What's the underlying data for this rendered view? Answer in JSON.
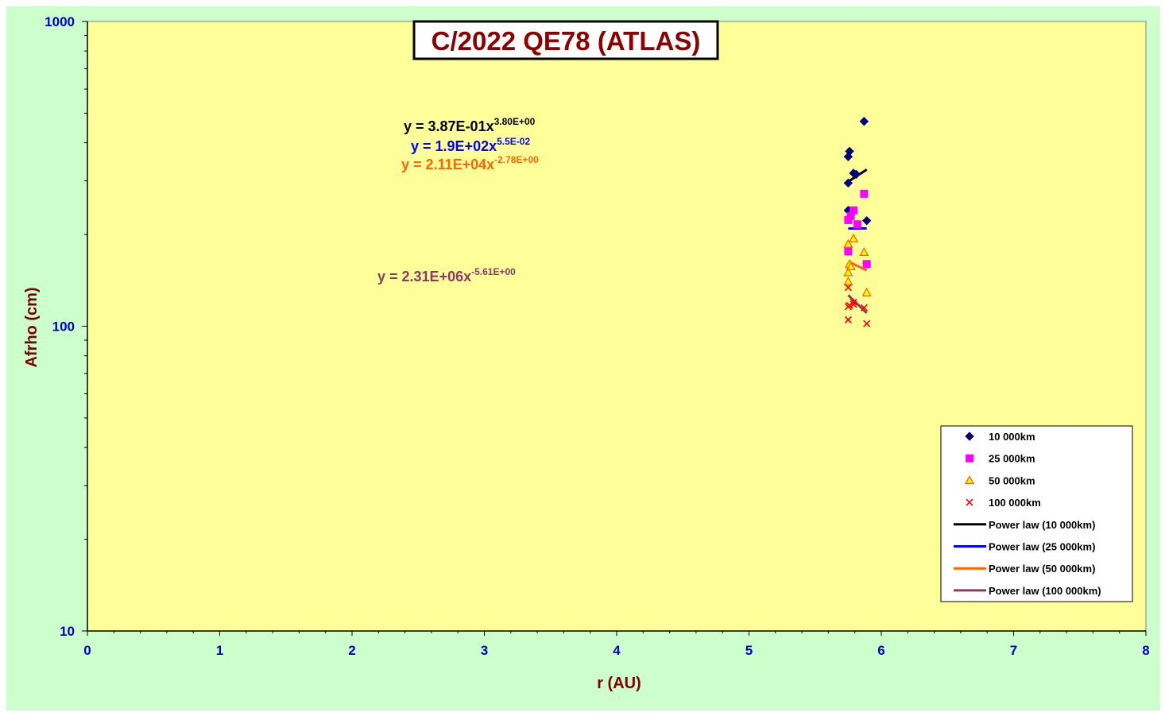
{
  "chart_data": {
    "type": "scatter",
    "title": "C/2022 QE78 (ATLAS)",
    "xlabel": "r (AU)",
    "ylabel": "Afrho (cm)",
    "xlim": [
      0,
      8
    ],
    "ylim": [
      10,
      1000
    ],
    "yscale": "log",
    "x_ticks": [
      "0",
      "1",
      "2",
      "3",
      "4",
      "5",
      "6",
      "7",
      "8"
    ],
    "y_ticks": [
      "10",
      "100",
      "1000"
    ],
    "grid": false,
    "legend_position": "bottom-right",
    "colors": {
      "page_background": "#ccffcc",
      "plot_background": "#ffff99",
      "axis_text": "#0000cc",
      "label_text": "#7f0000",
      "title_text": "#8b0000"
    },
    "series": [
      {
        "name": "10 000km",
        "marker": "diamond",
        "color": "#000080",
        "points": [
          [
            5.87,
            470
          ],
          [
            5.76,
            375
          ],
          [
            5.75,
            360
          ],
          [
            5.79,
            318
          ],
          [
            5.81,
            315
          ],
          [
            5.75,
            295
          ],
          [
            5.89,
            222
          ],
          [
            5.75,
            240
          ]
        ]
      },
      {
        "name": "25 000km",
        "marker": "square",
        "color": "#ff00ff",
        "points": [
          [
            5.87,
            272
          ],
          [
            5.79,
            240
          ],
          [
            5.77,
            230
          ],
          [
            5.75,
            223
          ],
          [
            5.82,
            216
          ],
          [
            5.75,
            176
          ],
          [
            5.89,
            160
          ]
        ]
      },
      {
        "name": "50 000km",
        "marker": "triangle",
        "color": "#ff6600",
        "points": [
          [
            5.79,
            194
          ],
          [
            5.75,
            186
          ],
          [
            5.87,
            175
          ],
          [
            5.76,
            160
          ],
          [
            5.77,
            157
          ],
          [
            5.75,
            150
          ],
          [
            5.75,
            140
          ],
          [
            5.89,
            129
          ]
        ]
      },
      {
        "name": "100 000km",
        "marker": "x",
        "color": "#ff0000",
        "points": [
          [
            5.75,
            134
          ],
          [
            5.79,
            120
          ],
          [
            5.76,
            117
          ],
          [
            5.75,
            116
          ],
          [
            5.87,
            115
          ],
          [
            5.79,
            118
          ],
          [
            5.75,
            105
          ],
          [
            5.89,
            102
          ]
        ]
      }
    ],
    "fits": [
      {
        "name": "Power law (10 000km)",
        "color": "#000000",
        "coefficient": 0.387,
        "exponent": 3.8,
        "x_range": [
          5.75,
          5.89
        ],
        "equation_base": "y = 3.87E-01x",
        "equation_exp": "3.80E+00"
      },
      {
        "name": "Power law (25 000km)",
        "color": "#0000ff",
        "coefficient": 190,
        "exponent": 0.055,
        "x_range": [
          5.75,
          5.89
        ],
        "equation_base": "y = 1.9E+02x",
        "equation_exp": "5.5E-02"
      },
      {
        "name": "Power law (50 000km)",
        "color": "#ff6600",
        "coefficient": 21100,
        "exponent": -2.78,
        "x_range": [
          5.75,
          5.89
        ],
        "equation_base": "y = 2.11E+04x",
        "equation_exp": "-2.78E+00"
      },
      {
        "name": "Power law (100 000km)",
        "color": "#8b3a62",
        "coefficient": 2310000,
        "exponent": -5.61,
        "x_range": [
          5.75,
          5.89
        ],
        "equation_base": "y = 2.31E+06x",
        "equation_exp": "-5.61E+00"
      }
    ]
  }
}
